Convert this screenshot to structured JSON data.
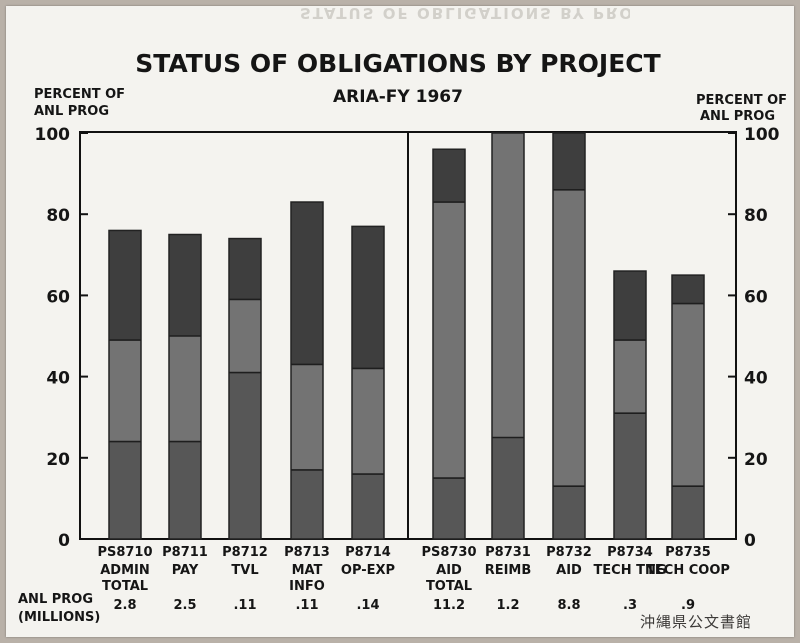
{
  "chart_data": {
    "type": "bar",
    "title": "STATUS OF OBLIGATIONS BY PROJECT",
    "subtitle": "ARIA-FY 1967",
    "ylabel_left": [
      "PERCENT OF",
      "ANL PROG"
    ],
    "ylabel_right": [
      "PERCENT OF",
      "ANL PROG"
    ],
    "ylim": [
      0,
      100
    ],
    "yticks": [
      "0",
      "20",
      "40",
      "60",
      "80",
      "100"
    ],
    "grid": false,
    "categories": [
      {
        "code": "PS8710",
        "lines": [
          "ADMIN",
          "TOTAL"
        ],
        "anl_prog": "2.8",
        "segments": [
          24,
          49,
          76
        ]
      },
      {
        "code": "P8711",
        "lines": [
          "PAY"
        ],
        "anl_prog": "2.5",
        "segments": [
          24,
          50,
          75
        ]
      },
      {
        "code": "P8712",
        "lines": [
          "TVL"
        ],
        "anl_prog": ".11",
        "segments": [
          41,
          59,
          74
        ]
      },
      {
        "code": "P8713",
        "lines": [
          "MAT",
          "INFO"
        ],
        "anl_prog": ".11",
        "segments": [
          17,
          43,
          83
        ]
      },
      {
        "code": "P8714",
        "lines": [
          "OP-EXP"
        ],
        "anl_prog": ".14",
        "segments": [
          16,
          42,
          77
        ]
      },
      {
        "code": "PS8730",
        "lines": [
          "AID",
          "TOTAL"
        ],
        "anl_prog": "11.2",
        "segments": [
          15,
          83,
          96
        ]
      },
      {
        "code": "P8731",
        "lines": [
          "REIMB"
        ],
        "anl_prog": "1.2",
        "segments": [
          25,
          100
        ]
      },
      {
        "code": "P8732",
        "lines": [
          "AID"
        ],
        "anl_prog": "8.8",
        "segments": [
          13,
          86,
          100
        ]
      },
      {
        "code": "P8734",
        "lines": [
          "TECH TNG"
        ],
        "anl_prog": ".3",
        "segments": [
          31,
          49,
          66
        ]
      },
      {
        "code": "P8735",
        "lines": [
          "TECH COOP"
        ],
        "anl_prog": ".9",
        "segments": [
          13,
          58,
          65
        ]
      }
    ],
    "footer_label": [
      "ANL PROG",
      "(MILLIONS)"
    ],
    "segment_fills": [
      "#575757",
      "#737373",
      "#3e3e3e"
    ]
  },
  "watermark": "沖縄県公文書館"
}
